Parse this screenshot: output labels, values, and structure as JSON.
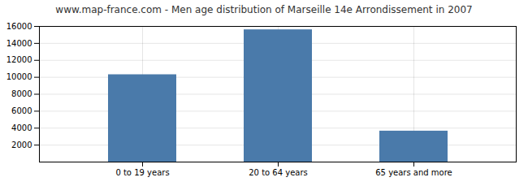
{
  "chart_data": {
    "type": "bar",
    "title": "www.map-france.com - Men age distribution of Marseille 14e Arrondissement in 2007",
    "categories": [
      "0 to 19 years",
      "20 to 64 years",
      "65 years and more"
    ],
    "values": [
      10300,
      15600,
      3650
    ],
    "color": "#4a7aaa",
    "ylim": [
      0,
      16000
    ],
    "yticks": [
      2000,
      4000,
      6000,
      8000,
      10000,
      12000,
      14000,
      16000
    ],
    "grid": true
  }
}
